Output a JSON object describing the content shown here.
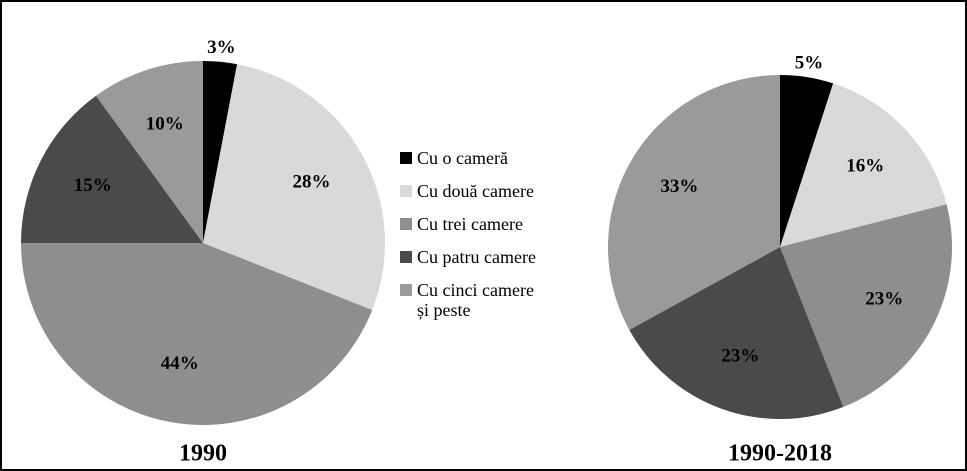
{
  "categories": [
    "Cu o cameră",
    "Cu două camere",
    "Cu trei camere",
    "Cu patru camere",
    "Cu cinci camere și peste"
  ],
  "colors": [
    "#000000",
    "#d9d9d9",
    "#8e8e8e",
    "#4a4a4a",
    "#9a9a9a"
  ],
  "chart_data": [
    {
      "type": "pie",
      "title": "1990",
      "values": [
        3,
        28,
        44,
        15,
        10
      ],
      "value_labels": [
        "3%",
        "28%",
        "44%",
        "15%",
        "10%"
      ]
    },
    {
      "type": "pie",
      "title": "1990-2018",
      "values": [
        5,
        16,
        23,
        23,
        33
      ],
      "value_labels": [
        "5%",
        "16%",
        "23%",
        "23%",
        "33%"
      ]
    }
  ]
}
